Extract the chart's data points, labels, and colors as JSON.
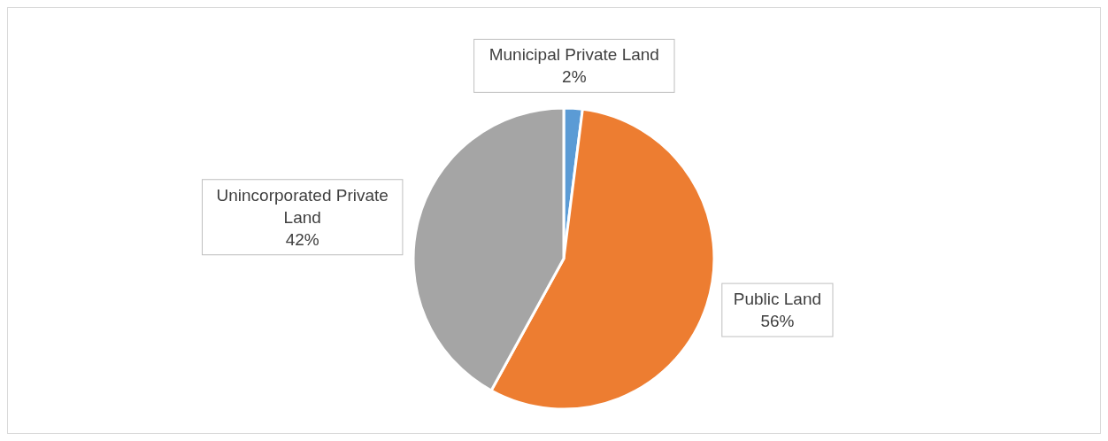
{
  "chart_data": {
    "type": "pie",
    "categories": [
      "Municipal Private Land",
      "Public Land",
      "Unincorporated Private Land"
    ],
    "values": [
      2,
      56,
      42
    ],
    "colors": [
      "#5b9bd5",
      "#ed7d31",
      "#a5a5a5"
    ],
    "value_labels": [
      "2%",
      "56%",
      "42%"
    ]
  }
}
